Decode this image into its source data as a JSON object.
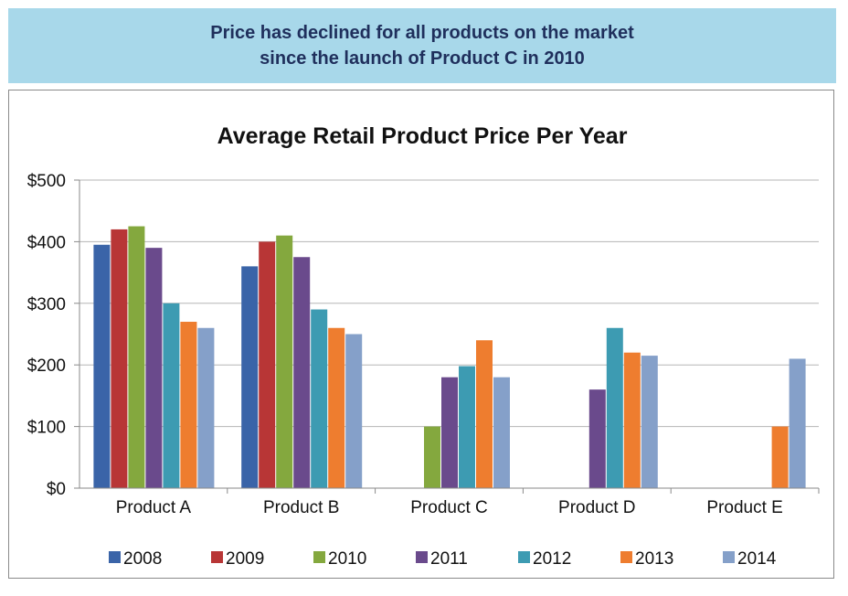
{
  "banner": {
    "line1": "Price has declined for all products on the market",
    "line2": "since the launch of Product C in 2010"
  },
  "chart_data": {
    "type": "bar",
    "title": "Average Retail Product Price Per Year",
    "categories": [
      "Product A",
      "Product B",
      "Product C",
      "Product D",
      "Product E"
    ],
    "yticks": [
      "$0",
      "$100",
      "$200",
      "$300",
      "$400",
      "$500"
    ],
    "ylim": [
      0,
      500
    ],
    "grid": true,
    "legend_position": "bottom",
    "series": [
      {
        "name": "2008",
        "color": "#3a64a8",
        "values": [
          395,
          360,
          null,
          null,
          null
        ]
      },
      {
        "name": "2009",
        "color": "#b83636",
        "values": [
          420,
          400,
          null,
          null,
          null
        ]
      },
      {
        "name": "2010",
        "color": "#84a83e",
        "values": [
          425,
          410,
          100,
          null,
          null
        ]
      },
      {
        "name": "2011",
        "color": "#6a4a8c",
        "values": [
          390,
          375,
          180,
          160,
          null
        ]
      },
      {
        "name": "2012",
        "color": "#3d9bb2",
        "values": [
          300,
          290,
          198,
          260,
          null
        ]
      },
      {
        "name": "2013",
        "color": "#ee7d2f",
        "values": [
          270,
          260,
          240,
          220,
          100
        ]
      },
      {
        "name": "2014",
        "color": "#85a0c9",
        "values": [
          260,
          250,
          180,
          215,
          210
        ]
      }
    ]
  }
}
